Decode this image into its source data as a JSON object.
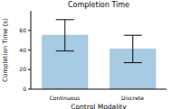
{
  "chart_data": {
    "type": "bar",
    "title": "Completion Time",
    "x_label": "Control Modality",
    "y_label": "Completion Time (s)",
    "categories": [
      "Continuous",
      "Discrete"
    ],
    "values": [
      55,
      41
    ],
    "errors": [
      16,
      14
    ],
    "color": "#a8cbe4",
    "ylim": [
      0,
      80
    ],
    "yticks": [
      0,
      20,
      40,
      60
    ],
    "grid": false
  }
}
